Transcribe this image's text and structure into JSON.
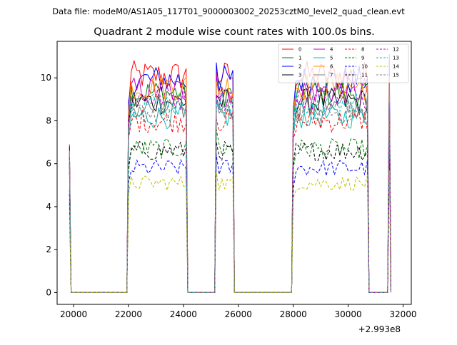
{
  "header": {
    "data_file": "Data file: modeM0/AS1A05_117T01_9000003002_20253cztM0_level2_quad_clean.evt"
  },
  "chart_data": {
    "type": "line",
    "title": "Quadrant 2 module wise count rates with 100.0s bins.",
    "xlabel": "",
    "ylabel": "",
    "x_offset_label": "+2.993e8",
    "xlim": [
      19400,
      32300
    ],
    "ylim": [
      -0.55,
      11.7
    ],
    "x_ticks": [
      20000,
      22000,
      24000,
      26000,
      28000,
      30000,
      32000
    ],
    "x_tick_labels": [
      "20000",
      "22000",
      "24000",
      "26000",
      "28000",
      "30000",
      "32000"
    ],
    "y_ticks": [
      0,
      2,
      4,
      6,
      8,
      10
    ],
    "y_tick_labels": [
      "0",
      "2",
      "4",
      "6",
      "8",
      "10"
    ],
    "grid": false,
    "legend_placement": "top-right",
    "segments": [
      {
        "start": 22000,
        "end": 24100
      },
      {
        "start": 25200,
        "end": 25800
      },
      {
        "start": 28000,
        "end": 30700
      },
      {
        "start": 31500,
        "end": 31500
      }
    ],
    "first_bin": {
      "x": 19850
    },
    "series": [
      {
        "name": "0",
        "color": "#ff0000",
        "dash": "solid",
        "level": 10.1,
        "first": 6.9,
        "spike": 10.3
      },
      {
        "name": "1",
        "color": "#008000",
        "dash": "solid",
        "level": 9.3,
        "first": 6.5,
        "spike": 9.6
      },
      {
        "name": "2",
        "color": "#0000ff",
        "dash": "solid",
        "level": 9.9,
        "first": 6.8,
        "spike": 10.7
      },
      {
        "name": "3",
        "color": "#000000",
        "dash": "solid",
        "level": 8.9,
        "first": 6.0,
        "spike": 9.2
      },
      {
        "name": "4",
        "color": "#c000c0",
        "dash": "solid",
        "level": 9.4,
        "first": 6.4,
        "spike": 10.2
      },
      {
        "name": "5",
        "color": "#00bfbf",
        "dash": "solid",
        "level": 8.2,
        "first": 5.8,
        "spike": 9.0
      },
      {
        "name": "6",
        "color": "#ff8c00",
        "dash": "solid",
        "level": 9.6,
        "first": 6.6,
        "spike": 9.8
      },
      {
        "name": "7",
        "color": "#808080",
        "dash": "solid",
        "level": 8.6,
        "first": 6.0,
        "spike": 9.0
      },
      {
        "name": "8",
        "color": "#ff0000",
        "dash": "dashed",
        "level": 8.0,
        "first": 5.6,
        "spike": 8.1
      },
      {
        "name": "9",
        "color": "#008000",
        "dash": "dashed",
        "level": 6.7,
        "first": 4.8,
        "spike": 7.6
      },
      {
        "name": "10",
        "color": "#0000ff",
        "dash": "dashed",
        "level": 5.8,
        "first": 4.2,
        "spike": 6.4
      },
      {
        "name": "11",
        "color": "#000000",
        "dash": "dashed",
        "level": 6.6,
        "first": 4.6,
        "spike": 7.0
      },
      {
        "name": "12",
        "color": "#c000c0",
        "dash": "dashed",
        "level": 9.1,
        "first": 6.3,
        "spike": 9.2
      },
      {
        "name": "13",
        "color": "#00bfbf",
        "dash": "dashed",
        "level": 8.8,
        "first": 6.2,
        "spike": 9.0
      },
      {
        "name": "14",
        "color": "#bfbf00",
        "dash": "dashed",
        "level": 5.1,
        "first": 3.6,
        "spike": 5.6
      },
      {
        "name": "15",
        "color": "#808080",
        "dash": "dashed",
        "level": 8.4,
        "first": 5.9,
        "spike": 8.6
      }
    ]
  }
}
